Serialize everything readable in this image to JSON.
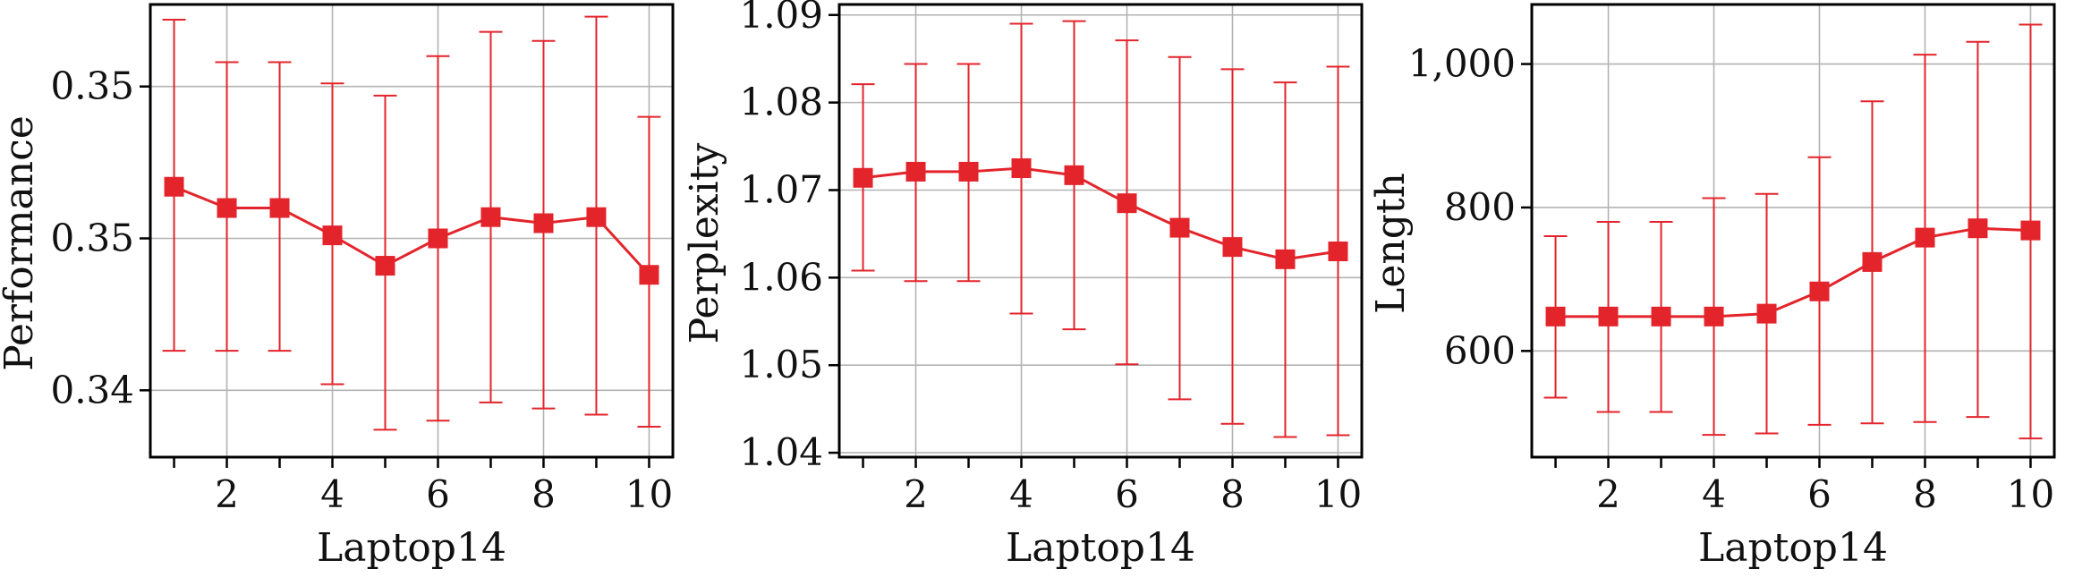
{
  "accent_color": "#e3242b",
  "grid": true,
  "chart_data": [
    {
      "type": "line",
      "xlabel": "Laptop14",
      "ylabel": "Performance",
      "x": [
        1,
        2,
        3,
        4,
        5,
        6,
        7,
        8,
        9,
        10
      ],
      "xticks": [
        2,
        4,
        6,
        8,
        10
      ],
      "xticklabels": [
        "2",
        "4",
        "6",
        "8",
        "10"
      ],
      "xlim": [
        0.55,
        10.45
      ],
      "ylim": [
        0.3378,
        0.3527
      ],
      "yticks": [
        0.34,
        0.345,
        0.35
      ],
      "yticklabels": [
        "0.34",
        "0.35",
        "0.35"
      ],
      "series": [
        {
          "values": [
            0.3467,
            0.346,
            0.346,
            0.3451,
            0.3441,
            0.345,
            0.3457,
            0.3455,
            0.3457,
            0.3438
          ],
          "err_low": [
            0.3413,
            0.3413,
            0.3413,
            0.3402,
            0.3387,
            0.339,
            0.3396,
            0.3394,
            0.3392,
            0.3388
          ],
          "err_high": [
            0.3522,
            0.3508,
            0.3508,
            0.3501,
            0.3497,
            0.351,
            0.3518,
            0.3515,
            0.3523,
            0.349
          ]
        }
      ]
    },
    {
      "type": "line",
      "xlabel": "Laptop14",
      "ylabel": "Perplexity",
      "x": [
        1,
        2,
        3,
        4,
        5,
        6,
        7,
        8,
        9,
        10
      ],
      "xticks": [
        2,
        4,
        6,
        8,
        10
      ],
      "xticklabels": [
        "2",
        "4",
        "6",
        "8",
        "10"
      ],
      "xlim": [
        0.55,
        10.45
      ],
      "ylim": [
        1.0395,
        1.0912
      ],
      "yticks": [
        1.04,
        1.05,
        1.06,
        1.07,
        1.08,
        1.09
      ],
      "yticklabels": [
        "1.04",
        "1.05",
        "1.06",
        "1.07",
        "1.08",
        "1.09"
      ],
      "series": [
        {
          "values": [
            1.0714,
            1.0721,
            1.0721,
            1.0725,
            1.0717,
            1.0685,
            1.0657,
            1.0635,
            1.0621,
            1.063
          ],
          "err_low": [
            1.0608,
            1.0596,
            1.0596,
            1.0559,
            1.0541,
            1.0501,
            1.0461,
            1.0433,
            1.0418,
            1.042
          ],
          "err_high": [
            1.0821,
            1.0844,
            1.0844,
            1.089,
            1.0893,
            1.0871,
            1.0852,
            1.0838,
            1.0823,
            1.0841
          ]
        }
      ]
    },
    {
      "type": "line",
      "xlabel": "Laptop14",
      "ylabel": "Length",
      "x": [
        1,
        2,
        3,
        4,
        5,
        6,
        7,
        8,
        9,
        10
      ],
      "xticks": [
        2,
        4,
        6,
        8,
        10
      ],
      "xticklabels": [
        "2",
        "4",
        "6",
        "8",
        "10"
      ],
      "xlim": [
        0.55,
        10.45
      ],
      "ylim": [
        452,
        1083
      ],
      "yticks": [
        600,
        800,
        1000
      ],
      "yticklabels": [
        "600",
        "800",
        "1,000"
      ],
      "series": [
        {
          "values": [
            648,
            648,
            648,
            648,
            652,
            683,
            724,
            758,
            771,
            768
          ],
          "err_low": [
            535,
            515,
            515,
            483,
            485,
            497,
            499,
            501,
            508,
            478
          ],
          "err_high": [
            760,
            780,
            780,
            813,
            819,
            870,
            948,
            1013,
            1031,
            1055
          ]
        }
      ]
    }
  ]
}
